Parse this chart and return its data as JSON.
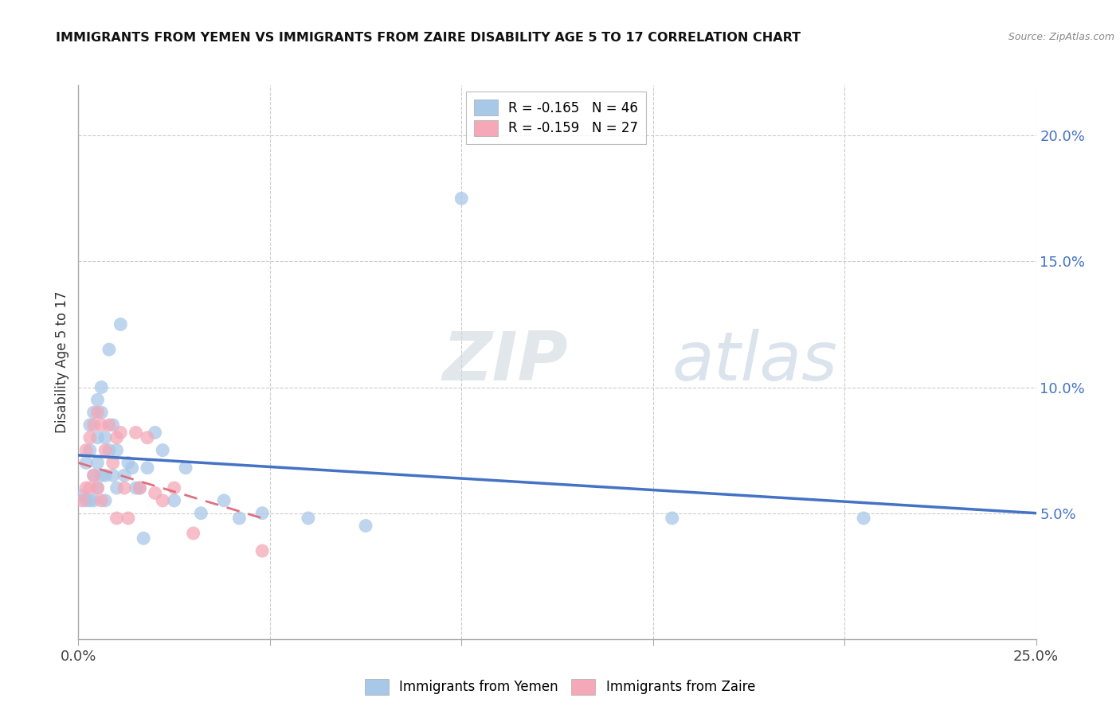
{
  "title": "IMMIGRANTS FROM YEMEN VS IMMIGRANTS FROM ZAIRE DISABILITY AGE 5 TO 17 CORRELATION CHART",
  "source": "Source: ZipAtlas.com",
  "ylabel": "Disability Age 5 to 17",
  "xmin": 0.0,
  "xmax": 0.25,
  "ymin": 0.0,
  "ymax": 0.22,
  "y_ticks_right": [
    0.05,
    0.1,
    0.15,
    0.2
  ],
  "y_tick_labels_right": [
    "5.0%",
    "10.0%",
    "15.0%",
    "20.0%"
  ],
  "legend_entry1": "R = -0.165   N = 46",
  "legend_entry2": "R = -0.159   N = 27",
  "blue_color": "#a8c8e8",
  "pink_color": "#f4a8b8",
  "blue_line_color": "#4472c4",
  "pink_line_color": "#e07080",
  "watermark": "ZIPatlas",
  "yemen_x": [
    0.001,
    0.002,
    0.002,
    0.003,
    0.003,
    0.003,
    0.004,
    0.004,
    0.004,
    0.005,
    0.005,
    0.005,
    0.005,
    0.006,
    0.006,
    0.006,
    0.007,
    0.007,
    0.007,
    0.008,
    0.008,
    0.009,
    0.009,
    0.01,
    0.01,
    0.011,
    0.012,
    0.013,
    0.014,
    0.015,
    0.016,
    0.017,
    0.018,
    0.02,
    0.022,
    0.025,
    0.028,
    0.032,
    0.038,
    0.042,
    0.048,
    0.06,
    0.075,
    0.1,
    0.155,
    0.205
  ],
  "yemen_y": [
    0.057,
    0.07,
    0.055,
    0.085,
    0.075,
    0.055,
    0.09,
    0.065,
    0.055,
    0.095,
    0.08,
    0.07,
    0.06,
    0.1,
    0.09,
    0.065,
    0.08,
    0.065,
    0.055,
    0.115,
    0.075,
    0.085,
    0.065,
    0.075,
    0.06,
    0.125,
    0.065,
    0.07,
    0.068,
    0.06,
    0.06,
    0.04,
    0.068,
    0.082,
    0.075,
    0.055,
    0.068,
    0.05,
    0.055,
    0.048,
    0.05,
    0.048,
    0.045,
    0.175,
    0.048,
    0.048
  ],
  "zaire_x": [
    0.001,
    0.002,
    0.002,
    0.003,
    0.003,
    0.004,
    0.004,
    0.005,
    0.005,
    0.006,
    0.006,
    0.007,
    0.008,
    0.009,
    0.01,
    0.01,
    0.011,
    0.012,
    0.013,
    0.015,
    0.016,
    0.018,
    0.02,
    0.022,
    0.025,
    0.03,
    0.048
  ],
  "zaire_y": [
    0.055,
    0.075,
    0.06,
    0.08,
    0.06,
    0.085,
    0.065,
    0.09,
    0.06,
    0.085,
    0.055,
    0.075,
    0.085,
    0.07,
    0.08,
    0.048,
    0.082,
    0.06,
    0.048,
    0.082,
    0.06,
    0.08,
    0.058,
    0.055,
    0.06,
    0.042,
    0.035
  ],
  "yemen_line_x": [
    0.0,
    0.25
  ],
  "yemen_line_y": [
    0.073,
    0.05
  ],
  "zaire_line_x": [
    0.0,
    0.048
  ],
  "zaire_line_y": [
    0.07,
    0.048
  ]
}
